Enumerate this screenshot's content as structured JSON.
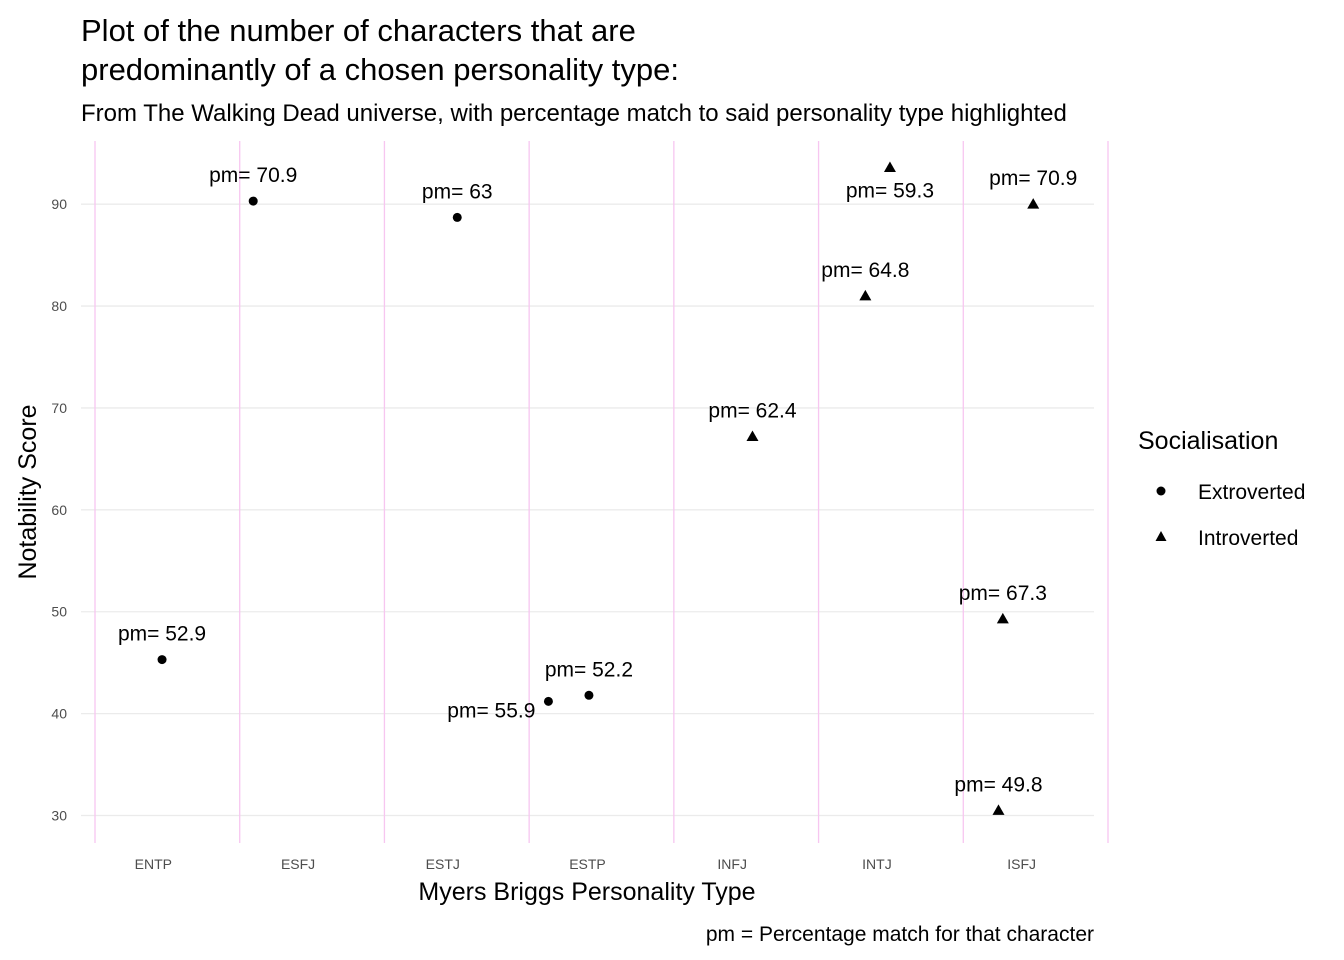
{
  "chart_data": {
    "type": "scatter",
    "title_lines": [
      "Plot of the number of characters that are",
      "predominantly of a chosen personality type:"
    ],
    "subtitle": "From The Walking Dead universe, with percentage match to said personality type highlighted",
    "xlabel": "Myers Briggs Personality Type",
    "ylabel": "Notability Score",
    "caption": "pm = Percentage match for that character",
    "categories": [
      "ENTP",
      "ESFJ",
      "ESTJ",
      "ESTP",
      "INFJ",
      "INTJ",
      "ISFJ"
    ],
    "yticks": [
      30,
      40,
      50,
      60,
      70,
      80,
      90
    ],
    "ylim": [
      27.3,
      96.2
    ],
    "grid": true,
    "legend": {
      "title": "Socialisation",
      "position": "right",
      "entries": [
        {
          "name": "Extroverted",
          "shape": "circle"
        },
        {
          "name": "Introverted",
          "shape": "triangle"
        }
      ]
    },
    "points": [
      {
        "category": "ENTP",
        "jitter": 0.06,
        "y": 45.3,
        "group": "Extroverted",
        "label": "pm= 52.9",
        "label_pos": "above"
      },
      {
        "category": "ESFJ",
        "jitter": -0.31,
        "y": 90.3,
        "group": "Extroverted",
        "label": "pm= 70.9",
        "label_pos": "above"
      },
      {
        "category": "ESTJ",
        "jitter": 0.1,
        "y": 88.7,
        "group": "Extroverted",
        "label": "pm= 63",
        "label_pos": "above"
      },
      {
        "category": "ESTP",
        "jitter": -0.27,
        "y": 41.2,
        "group": "Extroverted",
        "label": "pm= 55.9",
        "label_pos": "left"
      },
      {
        "category": "ESTP",
        "jitter": 0.01,
        "y": 41.8,
        "group": "Extroverted",
        "label": "pm= 52.2",
        "label_pos": "above"
      },
      {
        "category": "INFJ",
        "jitter": 0.14,
        "y": 67.2,
        "group": "Introverted",
        "label": "pm= 62.4",
        "label_pos": "above"
      },
      {
        "category": "INTJ",
        "jitter": -0.08,
        "y": 81.0,
        "group": "Introverted",
        "label": "pm= 64.8",
        "label_pos": "above"
      },
      {
        "category": "INTJ",
        "jitter": 0.09,
        "y": 93.6,
        "group": "Introverted",
        "label": "pm= 59.3",
        "label_pos": "below"
      },
      {
        "category": "ISFJ",
        "jitter": -0.13,
        "y": 49.3,
        "group": "Introverted",
        "label": "pm= 67.3",
        "label_pos": "above"
      },
      {
        "category": "ISFJ",
        "jitter": -0.16,
        "y": 30.5,
        "group": "Introverted",
        "label": "pm= 49.8",
        "label_pos": "above"
      },
      {
        "category": "ISFJ",
        "jitter": 0.08,
        "y": 90.0,
        "group": "Introverted",
        "label": "pm= 70.9",
        "label_pos": "above"
      }
    ],
    "colors": {
      "grid": "#ebebeb",
      "category_lines": "#f7c6f0",
      "points": "#000000",
      "tick_text": "#4d4d4d"
    }
  }
}
